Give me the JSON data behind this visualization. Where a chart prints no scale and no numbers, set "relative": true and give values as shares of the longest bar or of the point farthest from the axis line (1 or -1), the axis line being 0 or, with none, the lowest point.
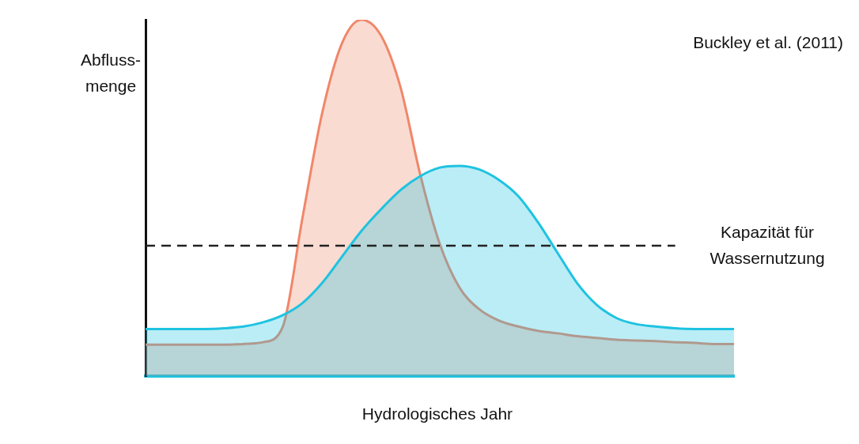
{
  "chart_data": {
    "type": "area",
    "relative": true,
    "xlabel": "Hydrologisches Jahr",
    "ylabel": "Abfluss-\nmenge",
    "annotations": [
      "Buckley et al. (2011)"
    ],
    "categories": [
      null,
      null,
      null,
      null,
      null,
      null,
      null,
      null,
      null,
      null,
      null,
      null,
      null,
      null,
      null,
      null,
      null,
      null,
      null,
      null,
      null,
      null,
      null,
      null,
      null,
      null,
      null,
      null,
      null,
      null,
      null
    ],
    "series": [
      {
        "color": "#1ec3e0",
        "values": [
          0.132,
          0.132,
          0.132,
          0.132,
          0.134,
          0.139,
          0.151,
          0.171,
          0.205,
          0.261,
          0.334,
          0.407,
          0.468,
          0.522,
          0.561,
          0.585,
          0.59,
          0.58,
          0.551,
          0.505,
          0.432,
          0.346,
          0.261,
          0.2,
          0.163,
          0.146,
          0.139,
          0.134,
          0.132,
          0.132,
          0.132
        ]
      },
      {
        "color": "#f0876a",
        "values": [
          0.088,
          0.088,
          0.088,
          0.088,
          0.088,
          0.09,
          0.095,
          0.139,
          0.444,
          0.737,
          0.932,
          1,
          0.956,
          0.81,
          0.566,
          0.371,
          0.249,
          0.188,
          0.156,
          0.139,
          0.127,
          0.12,
          0.112,
          0.107,
          0.102,
          0.1,
          0.098,
          0.095,
          0.093,
          0.09,
          0.09
        ]
      }
    ],
    "ref_lines": [
      {
        "axis": "y",
        "value": 0.366,
        "label": "Kapazität für\nWassernutzung",
        "color": "#222222",
        "line_style": "dashed"
      }
    ],
    "grid": false,
    "legend": false
  }
}
